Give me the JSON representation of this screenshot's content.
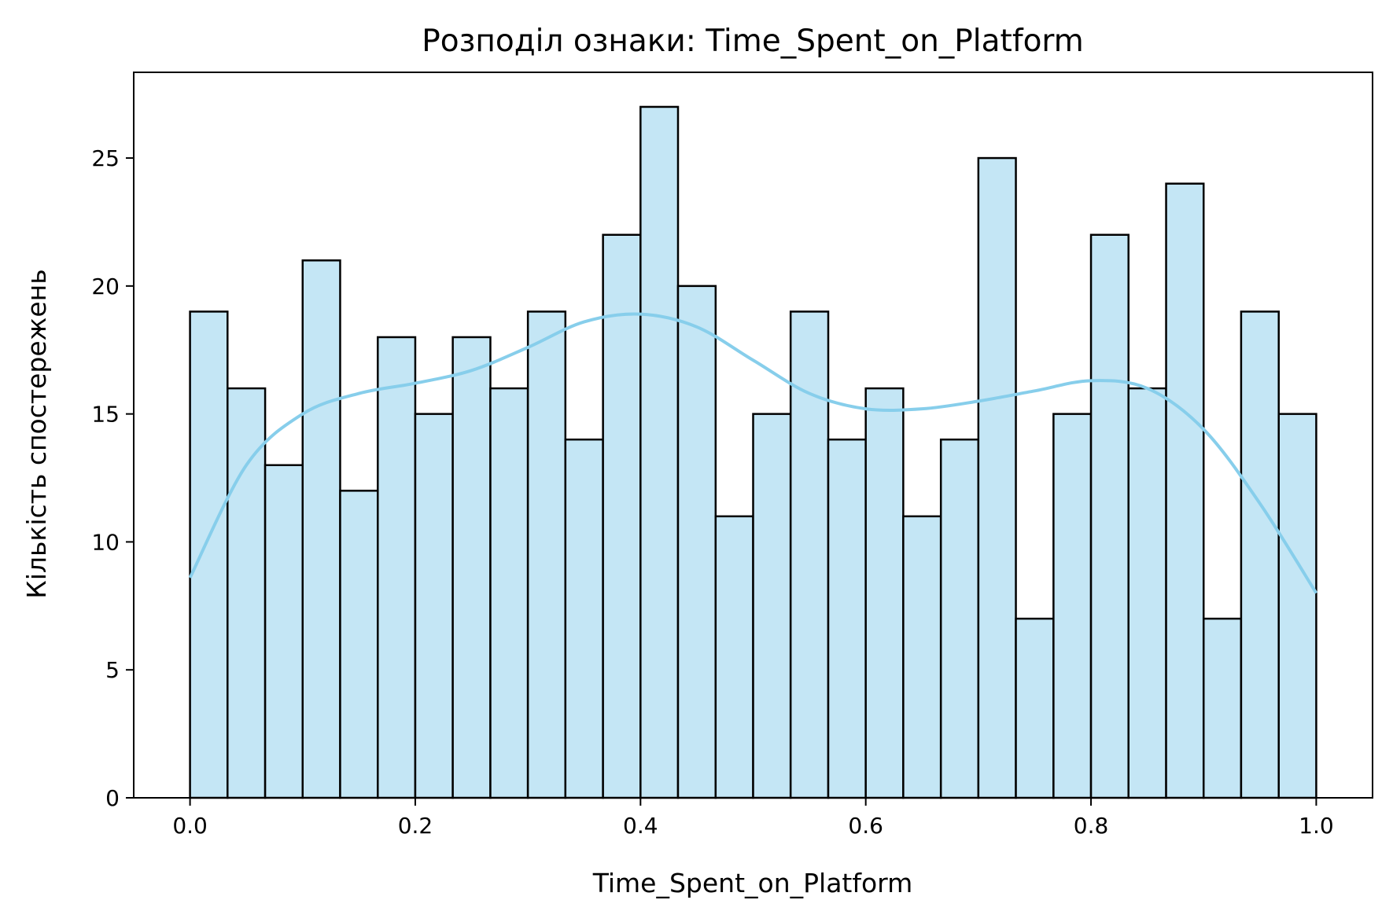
{
  "chart_data": {
    "type": "bar",
    "title": "Розподіл ознаки: Time_Spent_on_Platform",
    "xlabel": "Time_Spent_on_Platform",
    "ylabel": "Кількість спостережень",
    "xlim": [
      -0.05,
      1.05
    ],
    "ylim": [
      0,
      28.35
    ],
    "xticks": [
      "0.0",
      "0.2",
      "0.4",
      "0.6",
      "0.8",
      "1.0"
    ],
    "yticks": [
      "0",
      "5",
      "10",
      "15",
      "20",
      "25"
    ],
    "bin_edges": [
      0.0,
      0.0333,
      0.0667,
      0.1,
      0.1333,
      0.1667,
      0.2,
      0.2333,
      0.2667,
      0.3,
      0.3333,
      0.3667,
      0.4,
      0.4333,
      0.4667,
      0.5,
      0.5333,
      0.5667,
      0.6,
      0.6333,
      0.6667,
      0.7,
      0.7333,
      0.7667,
      0.8,
      0.8333,
      0.8667,
      0.9,
      0.9333,
      0.9667,
      1.0
    ],
    "values": [
      19,
      16,
      13,
      21,
      12,
      18,
      15,
      18,
      16,
      19,
      14,
      22,
      27,
      20,
      11,
      15,
      19,
      14,
      16,
      11,
      14,
      25,
      7,
      15,
      22,
      16,
      24,
      7,
      19,
      15
    ],
    "kde": {
      "x": [
        0.0,
        0.05,
        0.1,
        0.15,
        0.2,
        0.25,
        0.3,
        0.35,
        0.4,
        0.45,
        0.5,
        0.55,
        0.6,
        0.65,
        0.7,
        0.75,
        0.8,
        0.85,
        0.9,
        0.95,
        1.0
      ],
      "y": [
        8.6,
        13.0,
        15.0,
        15.8,
        16.2,
        16.7,
        17.6,
        18.6,
        18.9,
        18.4,
        17.1,
        15.8,
        15.2,
        15.2,
        15.5,
        15.9,
        16.3,
        16.0,
        14.4,
        11.5,
        8.0
      ]
    },
    "colors": {
      "bar_fill": "#c4e6f5",
      "bar_edge": "#000000",
      "kde_line": "#87ceeb"
    },
    "grid": false
  }
}
